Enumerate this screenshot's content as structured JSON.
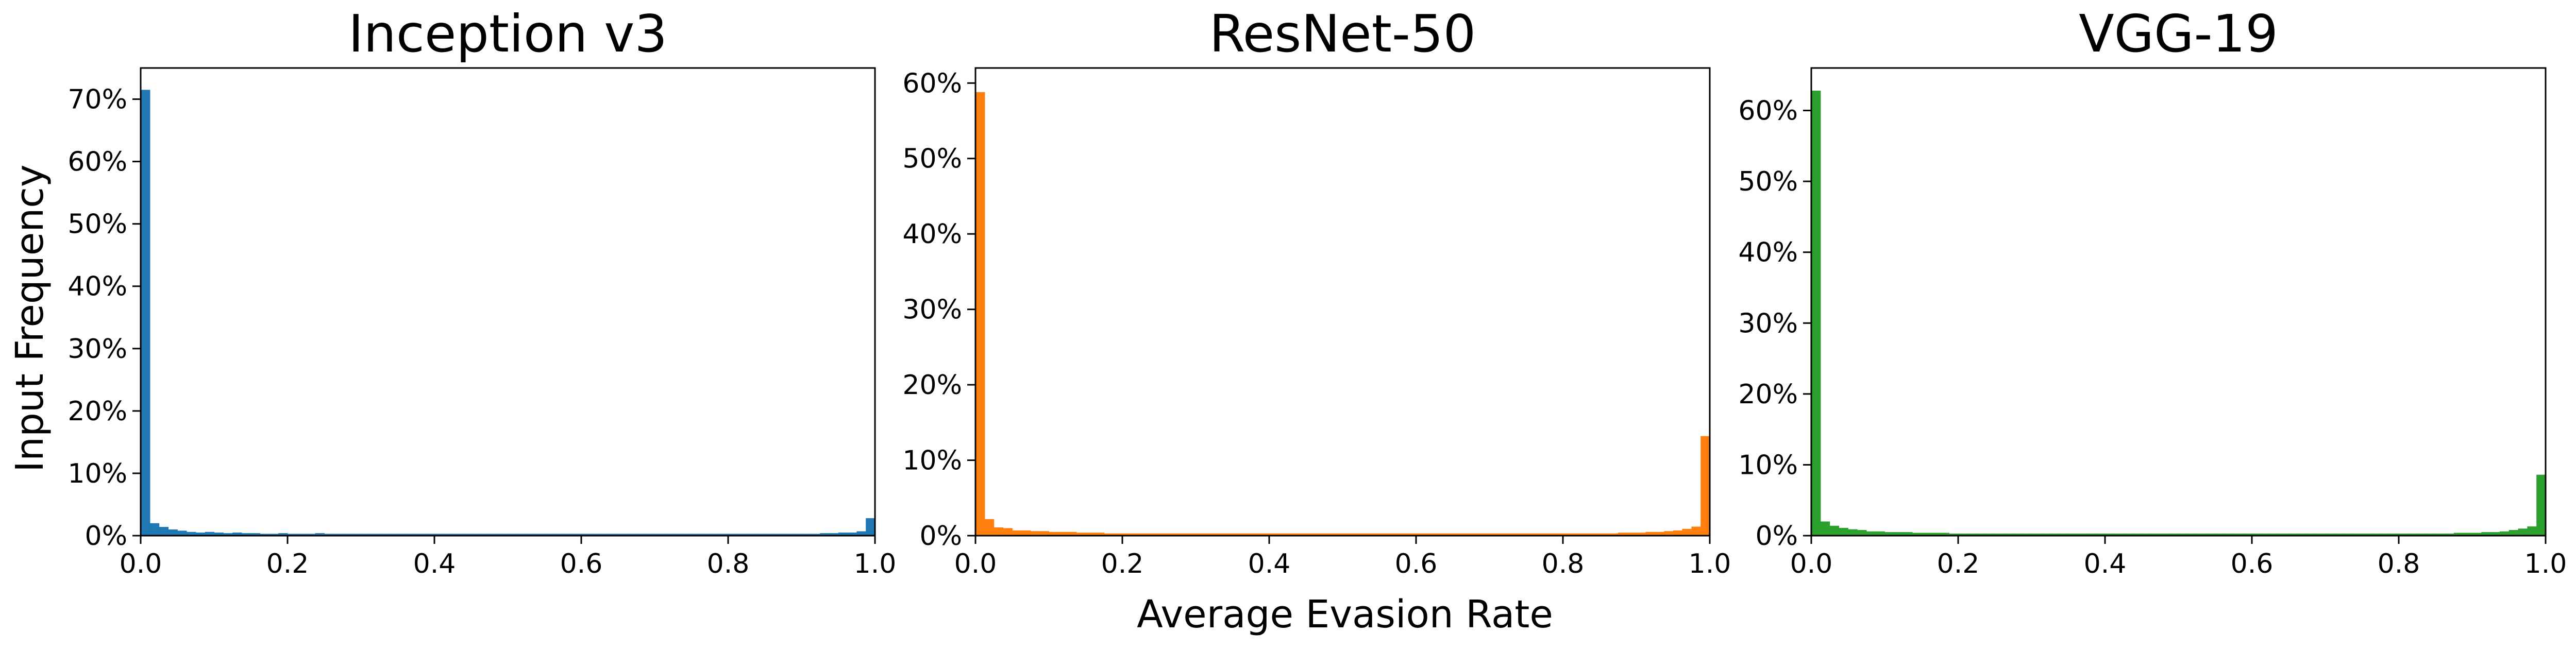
{
  "figure": {
    "xlabel": "Average Evasion Rate",
    "ylabel": "Input Frequency"
  },
  "chart_data": [
    {
      "type": "bar",
      "title": "Inception v3",
      "color": "#1f77b4",
      "xlim": [
        0.0,
        1.0
      ],
      "ylim": [
        0,
        75
      ],
      "x_ticks": [
        "0.0",
        "0.2",
        "0.4",
        "0.6",
        "0.8",
        "1.0"
      ],
      "y_ticks": [
        "0%",
        "10%",
        "20%",
        "30%",
        "40%",
        "50%",
        "60%",
        "70%"
      ],
      "bin_width": 0.0125,
      "values": [
        71.5,
        2.0,
        1.4,
        1.0,
        0.8,
        0.6,
        0.5,
        0.6,
        0.5,
        0.4,
        0.5,
        0.4,
        0.4,
        0.3,
        0.3,
        0.4,
        0.3,
        0.3,
        0.3,
        0.4,
        0.3,
        0.3,
        0.3,
        0.3,
        0.3,
        0.3,
        0.3,
        0.3,
        0.3,
        0.3,
        0.3,
        0.3,
        0.3,
        0.3,
        0.3,
        0.3,
        0.3,
        0.3,
        0.3,
        0.3,
        0.3,
        0.3,
        0.3,
        0.3,
        0.3,
        0.3,
        0.3,
        0.3,
        0.3,
        0.3,
        0.3,
        0.3,
        0.3,
        0.3,
        0.3,
        0.3,
        0.3,
        0.3,
        0.3,
        0.3,
        0.3,
        0.3,
        0.3,
        0.3,
        0.3,
        0.3,
        0.3,
        0.3,
        0.3,
        0.3,
        0.3,
        0.3,
        0.3,
        0.3,
        0.4,
        0.4,
        0.5,
        0.5,
        0.7,
        2.8
      ]
    },
    {
      "type": "bar",
      "title": "ResNet-50",
      "color": "#ff7f0e",
      "xlim": [
        0.0,
        1.0
      ],
      "ylim": [
        0,
        62
      ],
      "x_ticks": [
        "0.0",
        "0.2",
        "0.4",
        "0.6",
        "0.8",
        "1.0"
      ],
      "y_ticks": [
        "0%",
        "10%",
        "20%",
        "30%",
        "40%",
        "50%",
        "60%"
      ],
      "bin_width": 0.0125,
      "values": [
        58.8,
        2.2,
        1.1,
        1.0,
        0.7,
        0.7,
        0.6,
        0.6,
        0.5,
        0.5,
        0.5,
        0.4,
        0.4,
        0.4,
        0.3,
        0.3,
        0.3,
        0.3,
        0.3,
        0.3,
        0.3,
        0.3,
        0.3,
        0.3,
        0.3,
        0.3,
        0.3,
        0.3,
        0.3,
        0.3,
        0.3,
        0.3,
        0.3,
        0.3,
        0.3,
        0.3,
        0.3,
        0.3,
        0.3,
        0.3,
        0.3,
        0.3,
        0.3,
        0.3,
        0.3,
        0.3,
        0.3,
        0.3,
        0.3,
        0.3,
        0.3,
        0.3,
        0.3,
        0.3,
        0.3,
        0.3,
        0.3,
        0.3,
        0.3,
        0.3,
        0.3,
        0.3,
        0.3,
        0.3,
        0.3,
        0.3,
        0.3,
        0.3,
        0.3,
        0.3,
        0.4,
        0.4,
        0.4,
        0.5,
        0.5,
        0.6,
        0.7,
        0.9,
        1.2,
        13.2
      ]
    },
    {
      "type": "bar",
      "title": "VGG-19",
      "color": "#2ca02c",
      "xlim": [
        0.0,
        1.0
      ],
      "ylim": [
        0,
        66
      ],
      "x_ticks": [
        "0.0",
        "0.2",
        "0.4",
        "0.6",
        "0.8",
        "1.0"
      ],
      "y_ticks": [
        "0%",
        "10%",
        "20%",
        "30%",
        "40%",
        "50%",
        "60%"
      ],
      "bin_width": 0.0125,
      "values": [
        62.8,
        2.0,
        1.4,
        1.1,
        0.9,
        0.8,
        0.6,
        0.6,
        0.5,
        0.5,
        0.5,
        0.4,
        0.4,
        0.4,
        0.4,
        0.3,
        0.3,
        0.3,
        0.3,
        0.3,
        0.3,
        0.3,
        0.3,
        0.3,
        0.3,
        0.3,
        0.3,
        0.3,
        0.3,
        0.3,
        0.3,
        0.3,
        0.3,
        0.3,
        0.3,
        0.3,
        0.3,
        0.3,
        0.3,
        0.3,
        0.3,
        0.3,
        0.3,
        0.3,
        0.3,
        0.3,
        0.3,
        0.3,
        0.3,
        0.3,
        0.3,
        0.3,
        0.3,
        0.3,
        0.3,
        0.3,
        0.3,
        0.3,
        0.3,
        0.3,
        0.3,
        0.3,
        0.3,
        0.3,
        0.3,
        0.3,
        0.3,
        0.3,
        0.3,
        0.3,
        0.4,
        0.4,
        0.4,
        0.5,
        0.5,
        0.6,
        0.8,
        1.0,
        1.3,
        8.6
      ]
    }
  ]
}
